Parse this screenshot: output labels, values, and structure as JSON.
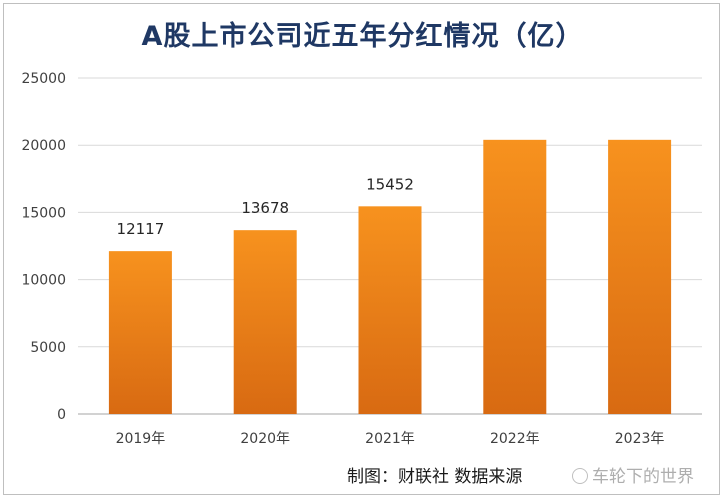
{
  "title": "A股上市公司近五年分红情况（亿）",
  "caption": "制图：财联社 数据来源",
  "watermark": "车轮下的世界",
  "colors": {
    "bar": "#f7921e",
    "bar_dark": "#d86a12",
    "grid": "#d9d9d9",
    "axis_text": "#404040",
    "title": "#1f3864"
  },
  "chart_data": {
    "type": "bar",
    "title": "A股上市公司近五年分红情况（亿）",
    "categories": [
      "2019年",
      "2020年",
      "2021年",
      "2022年",
      "2023年"
    ],
    "values": [
      12117,
      13678,
      15452,
      20400,
      20400
    ],
    "data_labels": [
      "12117",
      "13678",
      "15452",
      "",
      ""
    ],
    "yticks": [
      "0",
      "5000",
      "10000",
      "15000",
      "20000",
      "25000"
    ],
    "ylim": [
      0,
      25000
    ],
    "xlabel": "",
    "ylabel": "",
    "grid": true,
    "legend": "none"
  }
}
